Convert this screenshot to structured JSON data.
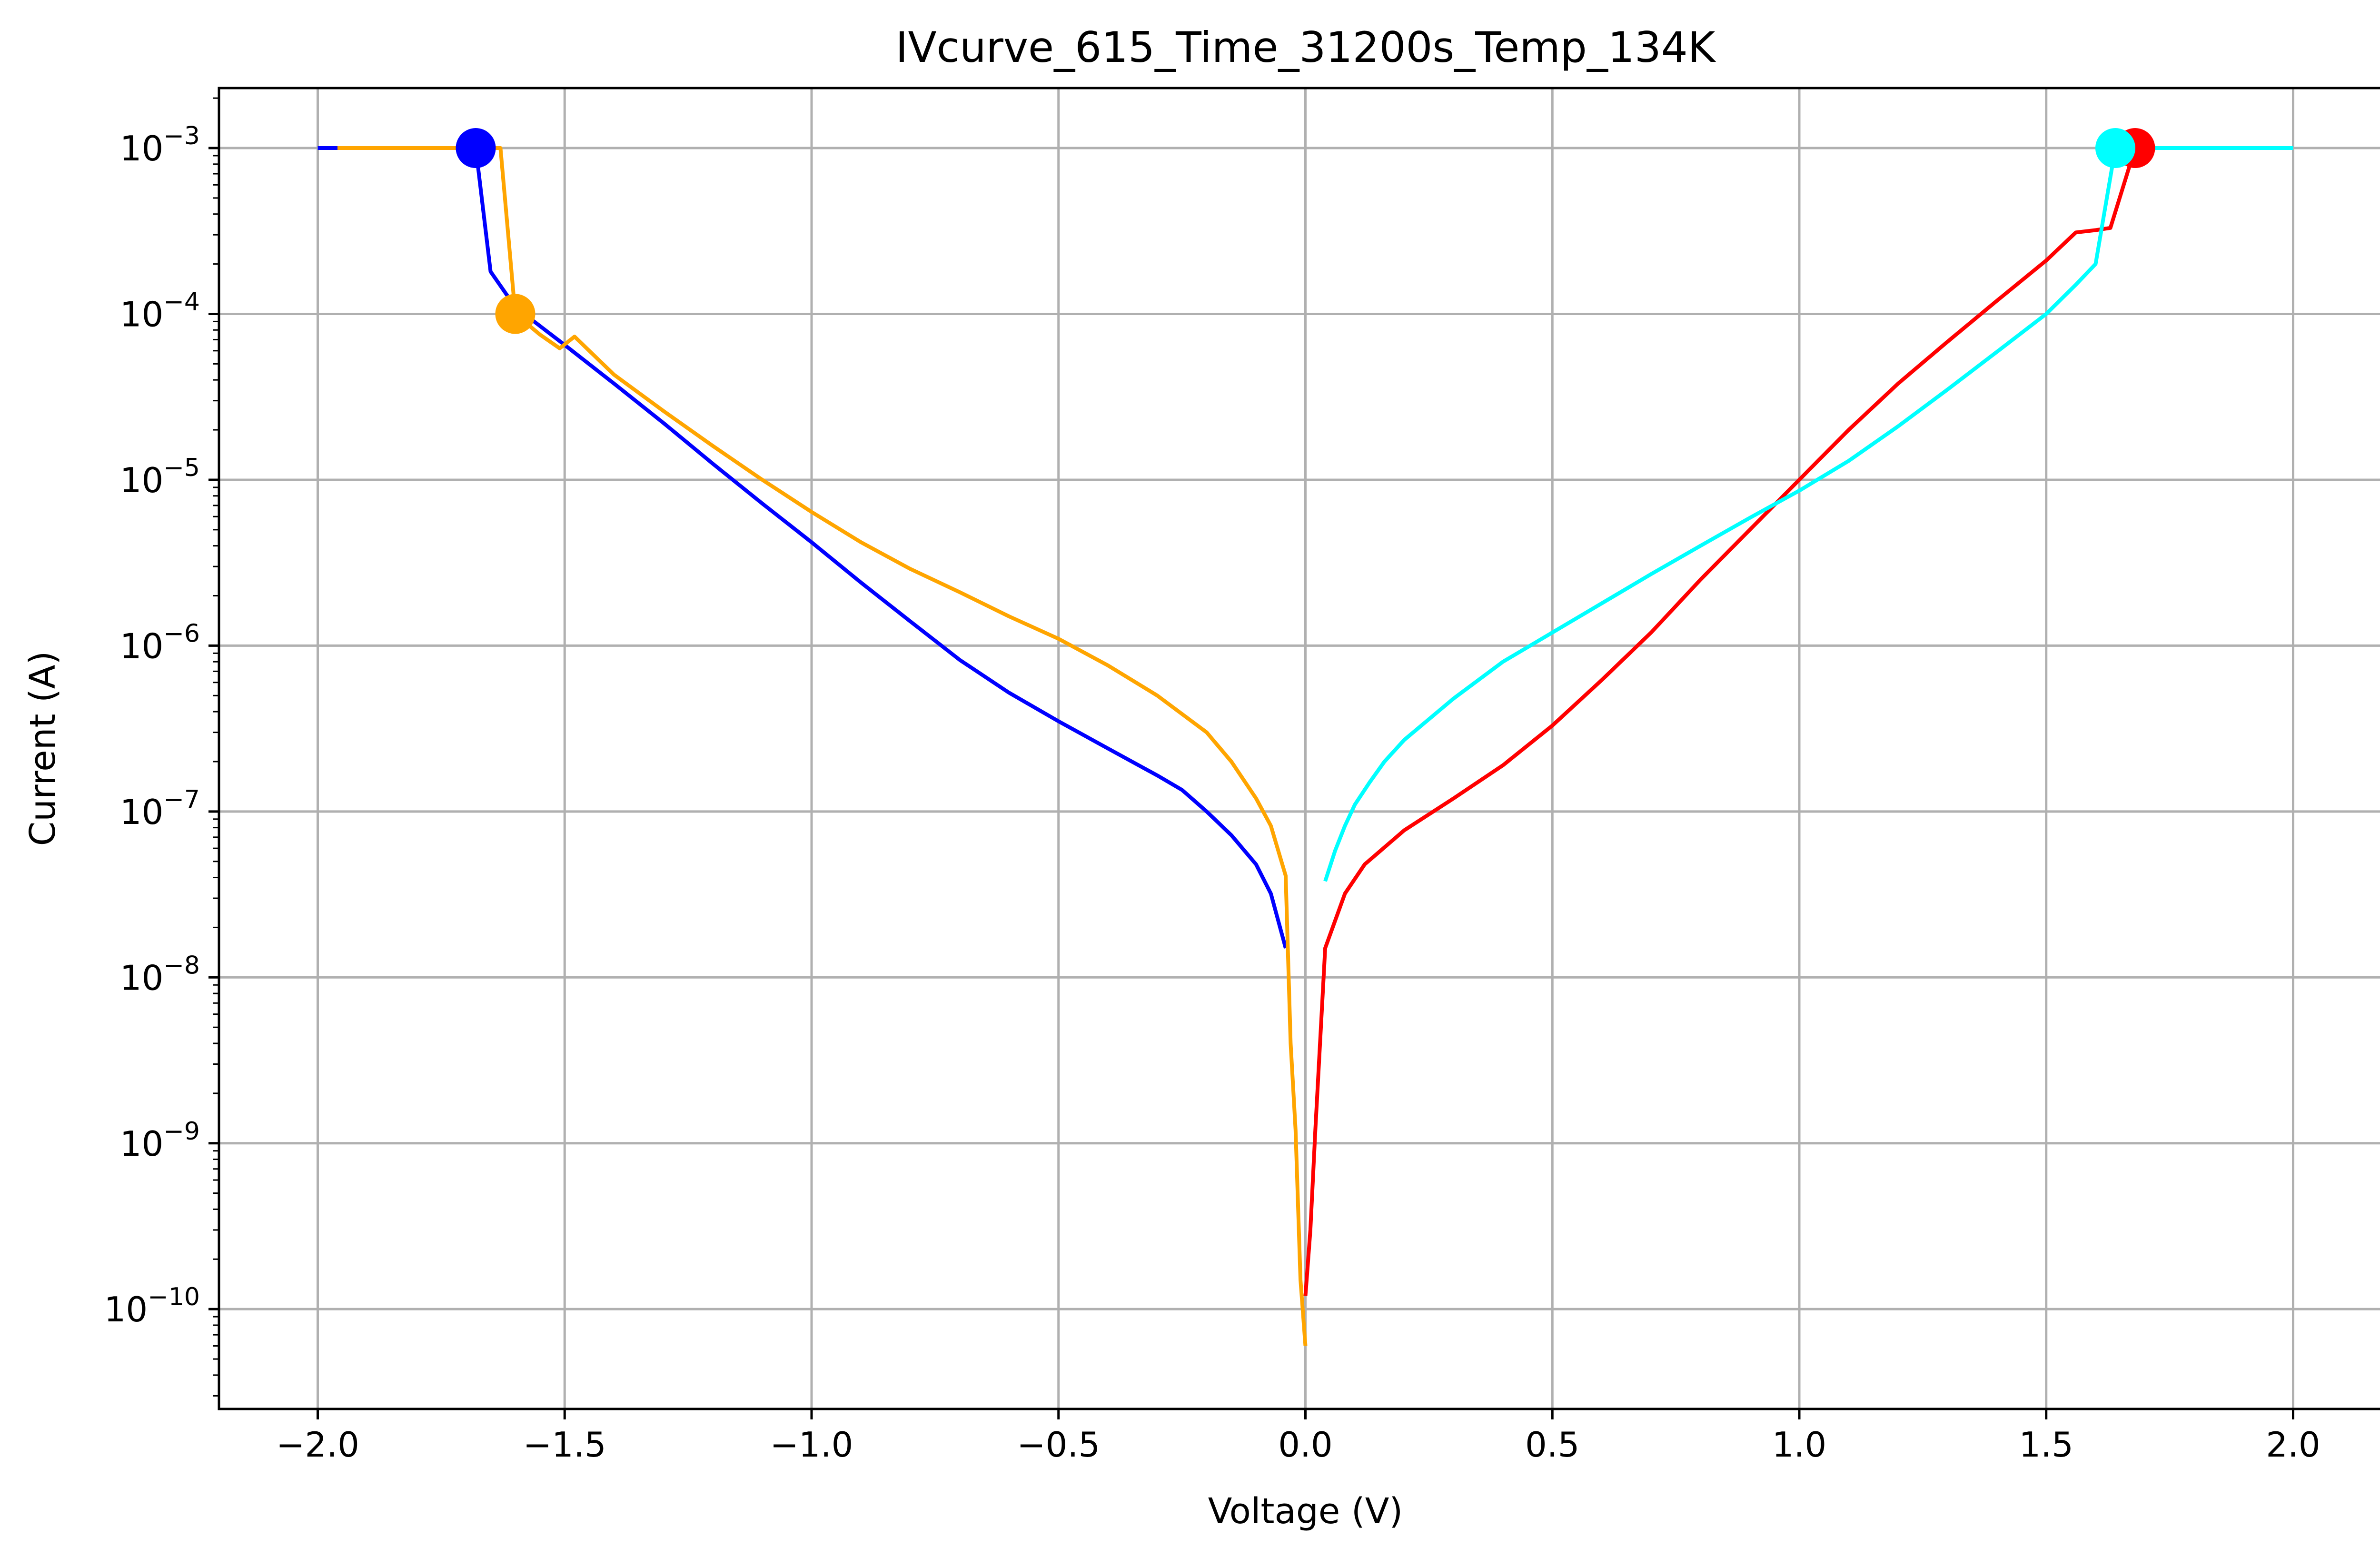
{
  "chart_data": {
    "type": "line",
    "title": "IVcurve_615_Time_31200s_Temp_134K",
    "xlabel": "Voltage (V)",
    "ylabel": "Current (A)",
    "xlim": [
      -2.2,
      2.2
    ],
    "ylim": [
      2.5e-11,
      0.0023
    ],
    "yscale": "log",
    "grid": true,
    "x_ticks": [
      -2.0,
      -1.5,
      -1.0,
      -0.5,
      0.0,
      0.5,
      1.0,
      1.5,
      2.0
    ],
    "x_tick_labels": [
      "−2.0",
      "−1.5",
      "−1.0",
      "−0.5",
      "0.0",
      "0.5",
      "1.0",
      "1.5",
      "2.0"
    ],
    "y_ticks": [
      1e-10,
      1e-09,
      1e-08,
      1e-07,
      1e-06,
      1e-05,
      0.0001,
      0.001
    ],
    "y_tick_exponents": [
      "−10",
      "−9",
      "−8",
      "−7",
      "−6",
      "−5",
      "−4",
      "−3"
    ],
    "y_tick_base": "10",
    "series": [
      {
        "color": "#0000ff",
        "x": [
          -2.0,
          -1.96,
          -1.68,
          -1.65,
          -1.6,
          -1.5,
          -1.4,
          -1.3,
          -1.2,
          -1.1,
          -1.0,
          -0.9,
          -0.8,
          -0.7,
          -0.6,
          -0.5,
          -0.4,
          -0.3,
          -0.25,
          -0.2,
          -0.15,
          -0.1,
          -0.07,
          -0.04
        ],
        "y": [
          0.001,
          0.001,
          0.001,
          0.00018,
          0.00011,
          6.5e-05,
          3.8e-05,
          2.2e-05,
          1.25e-05,
          7.2e-06,
          4.2e-06,
          2.4e-06,
          1.4e-06,
          8.2e-07,
          5.2e-07,
          3.5e-07,
          2.4e-07,
          1.65e-07,
          1.35e-07,
          1e-07,
          7.2e-08,
          4.8e-08,
          3.2e-08,
          1.5e-08
        ]
      },
      {
        "color": "#ffa500",
        "x": [
          -1.96,
          -1.63,
          -1.6,
          -1.55,
          -1.51,
          -1.48,
          -1.4,
          -1.3,
          -1.2,
          -1.1,
          -1.0,
          -0.9,
          -0.8,
          -0.7,
          -0.6,
          -0.5,
          -0.4,
          -0.3,
          -0.2,
          -0.15,
          -0.1,
          -0.07,
          -0.04,
          -0.03,
          -0.02,
          -0.01,
          0.0
        ],
        "y": [
          0.001,
          0.001,
          0.0001,
          7.5e-05,
          6.2e-05,
          7.3e-05,
          4.3e-05,
          2.6e-05,
          1.6e-05,
          1e-05,
          6.4e-06,
          4.2e-06,
          2.9e-06,
          2.1e-06,
          1.5e-06,
          1.1e-06,
          7.6e-07,
          5e-07,
          3e-07,
          2e-07,
          1.2e-07,
          8.2e-08,
          4.1e-08,
          4e-09,
          1.2e-09,
          1.5e-10,
          6e-11
        ]
      },
      {
        "color": "#ff0000",
        "x": [
          0.0,
          0.01,
          0.02,
          0.04,
          0.08,
          0.12,
          0.2,
          0.3,
          0.4,
          0.5,
          0.6,
          0.7,
          0.8,
          0.9,
          1.0,
          1.1,
          1.2,
          1.3,
          1.4,
          1.5,
          1.56,
          1.6,
          1.63,
          1.68,
          1.7,
          1.8,
          1.9,
          2.0
        ],
        "y": [
          1.2e-10,
          3e-10,
          1.2e-09,
          1.5e-08,
          3.2e-08,
          4.8e-08,
          7.7e-08,
          1.2e-07,
          1.9e-07,
          3.3e-07,
          6.2e-07,
          1.2e-06,
          2.5e-06,
          5e-06,
          1e-05,
          2e-05,
          3.8e-05,
          6.8e-05,
          0.00012,
          0.00021,
          0.00031,
          0.00032,
          0.00033,
          0.001,
          0.001,
          0.001,
          0.001,
          0.001
        ]
      },
      {
        "color": "#00ffff",
        "x": [
          0.04,
          0.06,
          0.08,
          0.1,
          0.13,
          0.16,
          0.2,
          0.3,
          0.4,
          0.5,
          0.6,
          0.7,
          0.8,
          0.9,
          1.0,
          1.1,
          1.2,
          1.3,
          1.4,
          1.5,
          1.56,
          1.6,
          1.64,
          1.7,
          1.8,
          1.9,
          2.0
        ],
        "y": [
          3.8e-08,
          5.8e-08,
          8.2e-08,
          1.1e-07,
          1.5e-07,
          2e-07,
          2.7e-07,
          4.8e-07,
          8e-07,
          1.2e-06,
          1.8e-06,
          2.7e-06,
          4e-06,
          5.9e-06,
          8.6e-06,
          1.3e-05,
          2.1e-05,
          3.5e-05,
          5.9e-05,
          0.0001,
          0.00015,
          0.0002,
          0.001,
          0.001,
          0.001,
          0.001,
          0.001
        ]
      }
    ],
    "markers": [
      {
        "x": -1.68,
        "y": 0.001,
        "color": "#0000ff"
      },
      {
        "x": -1.6,
        "y": 0.0001,
        "color": "#ffa500"
      },
      {
        "x": 1.68,
        "y": 0.001,
        "color": "#ff0000"
      },
      {
        "x": 1.64,
        "y": 0.001,
        "color": "#00ffff"
      }
    ]
  }
}
